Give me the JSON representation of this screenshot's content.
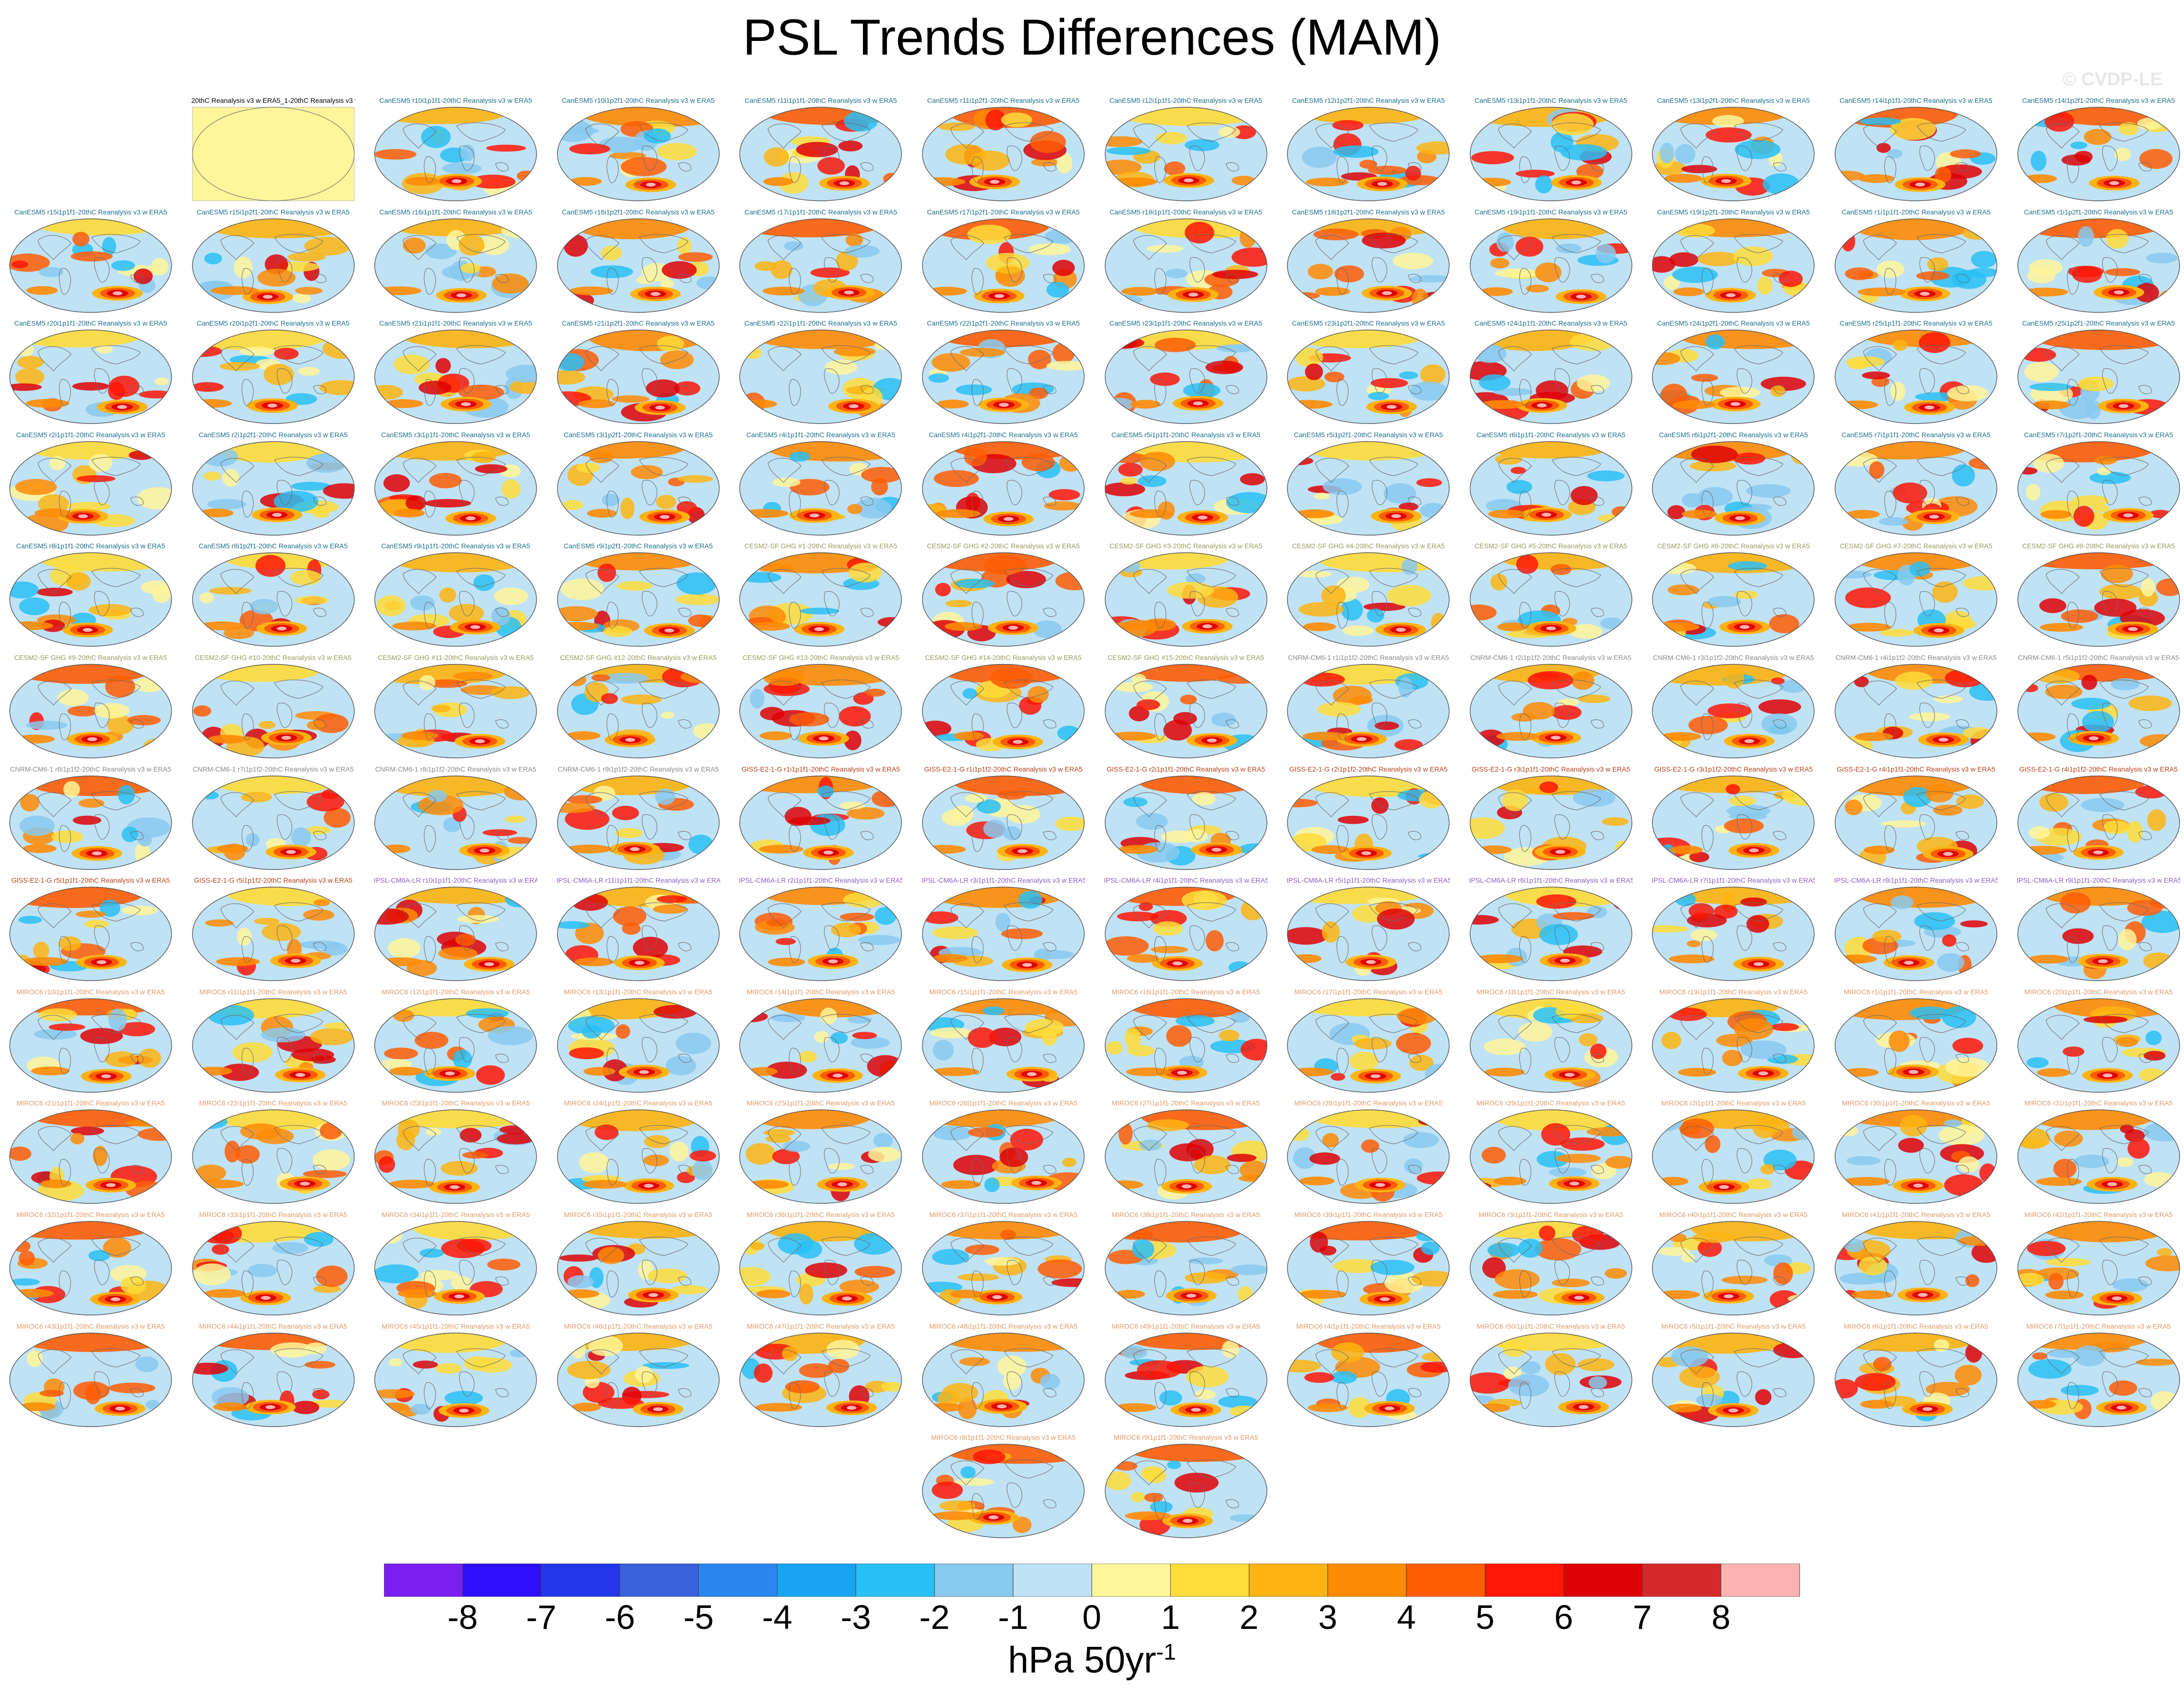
{
  "figure": {
    "title": "PSL Trends Differences (MAM)",
    "watermark": "© CVDP-LE"
  },
  "chart_data": {
    "type": "map-panels",
    "title": "PSL Trends Differences (MAM)",
    "variable": "PSL",
    "season": "MAM",
    "units": "hPa 50yr",
    "units_exponent": "-1",
    "colorbar": {
      "levels": [
        "-8",
        "-7",
        "-6",
        "-5",
        "-4",
        "-3",
        "-2",
        "-1",
        "0",
        "1",
        "2",
        "3",
        "4",
        "5",
        "6",
        "7",
        "8"
      ],
      "colors": [
        "#7b1ff0",
        "#2d10f7",
        "#2436ea",
        "#3a62dd",
        "#2a86f0",
        "#16a4f3",
        "#29c0f5",
        "#88c9ee",
        "#bfe2f5",
        "#fff59a",
        "#fedc3a",
        "#fdb412",
        "#fe8b05",
        "#fe5d05",
        "#fe1607",
        "#de0206",
        "#d52a2b",
        "#feb3b3"
      ]
    },
    "panels": [
      {
        "label": "20thC Reanalysis v3 w ERA5_1-20thC Reanalysis v3 w ERA5",
        "model": "OBS"
      },
      {
        "label": "CanESM5 r10i1p1f1-20thC Reanalysis v3 w ERA5",
        "model": "CanESM5"
      },
      {
        "label": "CanESM5 r10i1p2f1-20thC Reanalysis v3 w ERA5",
        "model": "CanESM5"
      },
      {
        "label": "CanESM5 r11i1p1f1-20thC Reanalysis v3 w ERA5",
        "model": "CanESM5"
      },
      {
        "label": "CanESM5 r11i1p2f1-20thC Reanalysis v3 w ERA5",
        "model": "CanESM5"
      },
      {
        "label": "CanESM5 r12i1p1f1-20thC Reanalysis v3 w ERA5",
        "model": "CanESM5"
      },
      {
        "label": "CanESM5 r12i1p2f1-20thC Reanalysis v3 w ERA5",
        "model": "CanESM5"
      },
      {
        "label": "CanESM5 r13i1p1f1-20thC Reanalysis v3 w ERA5",
        "model": "CanESM5"
      },
      {
        "label": "CanESM5 r13i1p2f1-20thC Reanalysis v3 w ERA5",
        "model": "CanESM5"
      },
      {
        "label": "CanESM5 r14i1p1f1-20thC Reanalysis v3 w ERA5",
        "model": "CanESM5"
      },
      {
        "label": "CanESM5 r14i1p2f1-20thC Reanalysis v3 w ERA5",
        "model": "CanESM5"
      },
      {
        "label": "CanESM5 r15i1p1f1-20thC Reanalysis v3 w ERA5",
        "model": "CanESM5"
      },
      {
        "label": "CanESM5 r15i1p2f1-20thC Reanalysis v3 w ERA5",
        "model": "CanESM5"
      },
      {
        "label": "CanESM5 r16i1p1f1-20thC Reanalysis v3 w ERA5",
        "model": "CanESM5"
      },
      {
        "label": "CanESM5 r16i1p2f1-20thC Reanalysis v3 w ERA5",
        "model": "CanESM5"
      },
      {
        "label": "CanESM5 r17i1p1f1-20thC Reanalysis v3 w ERA5",
        "model": "CanESM5"
      },
      {
        "label": "CanESM5 r17i1p2f1-20thC Reanalysis v3 w ERA5",
        "model": "CanESM5"
      },
      {
        "label": "CanESM5 r18i1p1f1-20thC Reanalysis v3 w ERA5",
        "model": "CanESM5"
      },
      {
        "label": "CanESM5 r18i1p2f1-20thC Reanalysis v3 w ERA5",
        "model": "CanESM5"
      },
      {
        "label": "CanESM5 r19i1p1f1-20thC Reanalysis v3 w ERA5",
        "model": "CanESM5"
      },
      {
        "label": "CanESM5 r19i1p2f1-20thC Reanalysis v3 w ERA5",
        "model": "CanESM5"
      },
      {
        "label": "CanESM5 r1i1p1f1-20thC Reanalysis v3 w ERA5",
        "model": "CanESM5"
      },
      {
        "label": "CanESM5 r1i1p2f1-20thC Reanalysis v3 w ERA5",
        "model": "CanESM5"
      },
      {
        "label": "CanESM5 r20i1p1f1-20thC Reanalysis v3 w ERA5",
        "model": "CanESM5"
      },
      {
        "label": "CanESM5 r20i1p2f1-20thC Reanalysis v3 w ERA5",
        "model": "CanESM5"
      },
      {
        "label": "CanESM5 r21i1p1f1-20thC Reanalysis v3 w ERA5",
        "model": "CanESM5"
      },
      {
        "label": "CanESM5 r21i1p2f1-20thC Reanalysis v3 w ERA5",
        "model": "CanESM5"
      },
      {
        "label": "CanESM5 r22i1p1f1-20thC Reanalysis v3 w ERA5",
        "model": "CanESM5"
      },
      {
        "label": "CanESM5 r22i1p2f1-20thC Reanalysis v3 w ERA5",
        "model": "CanESM5"
      },
      {
        "label": "CanESM5 r23i1p1f1-20thC Reanalysis v3 w ERA5",
        "model": "CanESM5"
      },
      {
        "label": "CanESM5 r23i1p2f1-20thC Reanalysis v3 w ERA5",
        "model": "CanESM5"
      },
      {
        "label": "CanESM5 r24i1p1f1-20thC Reanalysis v3 w ERA5",
        "model": "CanESM5"
      },
      {
        "label": "CanESM5 r24i1p2f1-20thC Reanalysis v3 w ERA5",
        "model": "CanESM5"
      },
      {
        "label": "CanESM5 r25i1p1f1-20thC Reanalysis v3 w ERA5",
        "model": "CanESM5"
      },
      {
        "label": "CanESM5 r25i1p2f1-20thC Reanalysis v3 w ERA5",
        "model": "CanESM5"
      },
      {
        "label": "CanESM5 r2i1p1f1-20thC Reanalysis v3 w ERA5",
        "model": "CanESM5"
      },
      {
        "label": "CanESM5 r2i1p2f1-20thC Reanalysis v3 w ERA5",
        "model": "CanESM5"
      },
      {
        "label": "CanESM5 r3i1p1f1-20thC Reanalysis v3 w ERA5",
        "model": "CanESM5"
      },
      {
        "label": "CanESM5 r3i1p2f1-20thC Reanalysis v3 w ERA5",
        "model": "CanESM5"
      },
      {
        "label": "CanESM5 r4i1p1f1-20thC Reanalysis v3 w ERA5",
        "model": "CanESM5"
      },
      {
        "label": "CanESM5 r4i1p2f1-20thC Reanalysis v3 w ERA5",
        "model": "CanESM5"
      },
      {
        "label": "CanESM5 r5i1p1f1-20thC Reanalysis v3 w ERA5",
        "model": "CanESM5"
      },
      {
        "label": "CanESM5 r5i1p2f1-20thC Reanalysis v3 w ERA5",
        "model": "CanESM5"
      },
      {
        "label": "CanESM5 r6i1p1f1-20thC Reanalysis v3 w ERA5",
        "model": "CanESM5"
      },
      {
        "label": "CanESM5 r6i1p2f1-20thC Reanalysis v3 w ERA5",
        "model": "CanESM5"
      },
      {
        "label": "CanESM5 r7i1p1f1-20thC Reanalysis v3 w ERA5",
        "model": "CanESM5"
      },
      {
        "label": "CanESM5 r7i1p2f1-20thC Reanalysis v3 w ERA5",
        "model": "CanESM5"
      },
      {
        "label": "CanESM5 r8i1p1f1-20thC Reanalysis v3 w ERA5",
        "model": "CanESM5"
      },
      {
        "label": "CanESM5 r8i1p2f1-20thC Reanalysis v3 w ERA5",
        "model": "CanESM5"
      },
      {
        "label": "CanESM5 r9i1p1f1-20thC Reanalysis v3 w ERA5",
        "model": "CanESM5"
      },
      {
        "label": "CanESM5 r9i1p2f1-20thC Reanalysis v3 w ERA5",
        "model": "CanESM5"
      },
      {
        "label": "CESM2-SF GHG #1-20thC Reanalysis v3 w ERA5",
        "model": "CESM2-SF"
      },
      {
        "label": "CESM2-SF GHG #2-20thC Reanalysis v3 w ERA5",
        "model": "CESM2-SF"
      },
      {
        "label": "CESM2-SF GHG #3-20thC Reanalysis v3 w ERA5",
        "model": "CESM2-SF"
      },
      {
        "label": "CESM2-SF GHG #4-20thC Reanalysis v3 w ERA5",
        "model": "CESM2-SF"
      },
      {
        "label": "CESM2-SF GHG #5-20thC Reanalysis v3 w ERA5",
        "model": "CESM2-SF"
      },
      {
        "label": "CESM2-SF GHG #6-20thC Reanalysis v3 w ERA5",
        "model": "CESM2-SF"
      },
      {
        "label": "CESM2-SF GHG #7-20thC Reanalysis v3 w ERA5",
        "model": "CESM2-SF"
      },
      {
        "label": "CESM2-SF GHG #8-20thC Reanalysis v3 w ERA5",
        "model": "CESM2-SF"
      },
      {
        "label": "CESM2-SF GHG #9-20thC Reanalysis v3 w ERA5",
        "model": "CESM2-SF"
      },
      {
        "label": "CESM2-SF GHG #10-20thC Reanalysis v3 w ERA5",
        "model": "CESM2-SF"
      },
      {
        "label": "CESM2-SF GHG #11-20thC Reanalysis v3 w ERA5",
        "model": "CESM2-SF"
      },
      {
        "label": "CESM2-SF GHG #12-20thC Reanalysis v3 w ERA5",
        "model": "CESM2-SF"
      },
      {
        "label": "CESM2-SF GHG #13-20thC Reanalysis v3 w ERA5",
        "model": "CESM2-SF"
      },
      {
        "label": "CESM2-SF GHG #14-20thC Reanalysis v3 w ERA5",
        "model": "CESM2-SF"
      },
      {
        "label": "CESM2-SF GHG #15-20thC Reanalysis v3 w ERA5",
        "model": "CESM2-SF"
      },
      {
        "label": "CNRM-CM6-1 r1i1p1f2-20thC Reanalysis v3 w ERA5",
        "model": "CNRM"
      },
      {
        "label": "CNRM-CM6-1 r2i1p1f2-20thC Reanalysis v3 w ERA5",
        "model": "CNRM"
      },
      {
        "label": "CNRM-CM6-1 r3i1p1f2-20thC Reanalysis v3 w ERA5",
        "model": "CNRM"
      },
      {
        "label": "CNRM-CM6-1 r4i1p1f2-20thC Reanalysis v3 w ERA5",
        "model": "CNRM"
      },
      {
        "label": "CNRM-CM6-1 r5i1p1f2-20thC Reanalysis v3 w ERA5",
        "model": "CNRM"
      },
      {
        "label": "CNRM-CM6-1 r6i1p1f2-20thC Reanalysis v3 w ERA5",
        "model": "CNRM"
      },
      {
        "label": "CNRM-CM6-1 r7i1p1f2-20thC Reanalysis v3 w ERA5",
        "model": "CNRM"
      },
      {
        "label": "CNRM-CM6-1 r8i1p1f2-20thC Reanalysis v3 w ERA5",
        "model": "CNRM"
      },
      {
        "label": "CNRM-CM6-1 r9i1p1f2-20thC Reanalysis v3 w ERA5",
        "model": "CNRM"
      },
      {
        "label": "GISS-E2-1-G r1i1p1f1-20thC Reanalysis v3 w ERA5",
        "model": "GISS"
      },
      {
        "label": "GISS-E2-1-G r1i1p1f2-20thC Reanalysis v3 w ERA5",
        "model": "GISS"
      },
      {
        "label": "GISS-E2-1-G r2i1p1f1-20thC Reanalysis v3 w ERA5",
        "model": "GISS"
      },
      {
        "label": "GISS-E2-1-G r2i1p1f2-20thC Reanalysis v3 w ERA5",
        "model": "GISS"
      },
      {
        "label": "GISS-E2-1-G r3i1p1f1-20thC Reanalysis v3 w ERA5",
        "model": "GISS"
      },
      {
        "label": "GISS-E2-1-G r3i1p1f2-20thC Reanalysis v3 w ERA5",
        "model": "GISS"
      },
      {
        "label": "GISS-E2-1-G r4i1p1f1-20thC Reanalysis v3 w ERA5",
        "model": "GISS"
      },
      {
        "label": "GISS-E2-1-G r4i1p1f2-20thC Reanalysis v3 w ERA5",
        "model": "GISS"
      },
      {
        "label": "GISS-E2-1-G r5i1p1f1-20thC Reanalysis v3 w ERA5",
        "model": "GISS"
      },
      {
        "label": "GISS-E2-1-G r5i1p1f2-20thC Reanalysis v3 w ERA5",
        "model": "GISS"
      },
      {
        "label": "IPSL-CM6A-LR r10i1p1f1-20thC Reanalysis v3 w ERA5",
        "model": "IPSL"
      },
      {
        "label": "IPSL-CM6A-LR r11i1p1f1-20thC Reanalysis v3 w ERA5",
        "model": "IPSL"
      },
      {
        "label": "IPSL-CM6A-LR r2i1p1f1-20thC Reanalysis v3 w ERA5",
        "model": "IPSL"
      },
      {
        "label": "IPSL-CM6A-LR r3i1p1f1-20thC Reanalysis v3 w ERA5",
        "model": "IPSL"
      },
      {
        "label": "IPSL-CM6A-LR r4i1p1f1-20thC Reanalysis v3 w ERA5",
        "model": "IPSL"
      },
      {
        "label": "IPSL-CM6A-LR r5i1p1f1-20thC Reanalysis v3 w ERA5",
        "model": "IPSL"
      },
      {
        "label": "IPSL-CM6A-LR r6i1p1f1-20thC Reanalysis v3 w ERA5",
        "model": "IPSL"
      },
      {
        "label": "IPSL-CM6A-LR r7i1p1f1-20thC Reanalysis v3 w ERA5",
        "model": "IPSL"
      },
      {
        "label": "IPSL-CM6A-LR r8i1p1f1-20thC Reanalysis v3 w ERA5",
        "model": "IPSL"
      },
      {
        "label": "IPSL-CM6A-LR r9i1p1f1-20thC Reanalysis v3 w ERA5",
        "model": "IPSL"
      },
      {
        "label": "MIROC6 r10i1p1f1-20thC Reanalysis v3 w ERA5",
        "model": "MIROC6"
      },
      {
        "label": "MIROC6 r11i1p1f1-20thC Reanalysis v3 w ERA5",
        "model": "MIROC6"
      },
      {
        "label": "MIROC6 r12i1p1f1-20thC Reanalysis v3 w ERA5",
        "model": "MIROC6"
      },
      {
        "label": "MIROC6 r13i1p1f1-20thC Reanalysis v3 w ERA5",
        "model": "MIROC6"
      },
      {
        "label": "MIROC6 r14i1p1f1-20thC Reanalysis v3 w ERA5",
        "model": "MIROC6"
      },
      {
        "label": "MIROC6 r15i1p1f1-20thC Reanalysis v3 w ERA5",
        "model": "MIROC6"
      },
      {
        "label": "MIROC6 r16i1p1f1-20thC Reanalysis v3 w ERA5",
        "model": "MIROC6"
      },
      {
        "label": "MIROC6 r17i1p1f1-20thC Reanalysis v3 w ERA5",
        "model": "MIROC6"
      },
      {
        "label": "MIROC6 r18i1p1f1-20thC Reanalysis v3 w ERA5",
        "model": "MIROC6"
      },
      {
        "label": "MIROC6 r19i1p1f1-20thC Reanalysis v3 w ERA5",
        "model": "MIROC6"
      },
      {
        "label": "MIROC6 r1i1p1f1-20thC Reanalysis v3 w ERA5",
        "model": "MIROC6"
      },
      {
        "label": "MIROC6 r20i1p1f1-20thC Reanalysis v3 w ERA5",
        "model": "MIROC6"
      },
      {
        "label": "MIROC6 r21i1p1f1-20thC Reanalysis v3 w ERA5",
        "model": "MIROC6"
      },
      {
        "label": "MIROC6 r22i1p1f1-20thC Reanalysis v3 w ERA5",
        "model": "MIROC6"
      },
      {
        "label": "MIROC6 r23i1p1f1-20thC Reanalysis v3 w ERA5",
        "model": "MIROC6"
      },
      {
        "label": "MIROC6 r24i1p1f1-20thC Reanalysis v3 w ERA5",
        "model": "MIROC6"
      },
      {
        "label": "MIROC6 r25i1p1f1-20thC Reanalysis v3 w ERA5",
        "model": "MIROC6"
      },
      {
        "label": "MIROC6 r26i1p1f1-20thC Reanalysis v3 w ERA5",
        "model": "MIROC6"
      },
      {
        "label": "MIROC6 r27i1p1f1-20thC Reanalysis v3 w ERA5",
        "model": "MIROC6"
      },
      {
        "label": "MIROC6 r28i1p1f1-20thC Reanalysis v3 w ERA5",
        "model": "MIROC6"
      },
      {
        "label": "MIROC6 r29i1p1f1-20thC Reanalysis v3 w ERA5",
        "model": "MIROC6"
      },
      {
        "label": "MIROC6 r2i1p1f1-20thC Reanalysis v3 w ERA5",
        "model": "MIROC6"
      },
      {
        "label": "MIROC6 r30i1p1f1-20thC Reanalysis v3 w ERA5",
        "model": "MIROC6"
      },
      {
        "label": "MIROC6 r31i1p1f1-20thC Reanalysis v3 w ERA5",
        "model": "MIROC6"
      },
      {
        "label": "MIROC6 r32i1p1f1-20thC Reanalysis v3 w ERA5",
        "model": "MIROC6"
      },
      {
        "label": "MIROC6 r33i1p1f1-20thC Reanalysis v3 w ERA5",
        "model": "MIROC6"
      },
      {
        "label": "MIROC6 r34i1p1f1-20thC Reanalysis v3 w ERA5",
        "model": "MIROC6"
      },
      {
        "label": "MIROC6 r35i1p1f1-20thC Reanalysis v3 w ERA5",
        "model": "MIROC6"
      },
      {
        "label": "MIROC6 r36i1p1f1-20thC Reanalysis v3 w ERA5",
        "model": "MIROC6"
      },
      {
        "label": "MIROC6 r37i1p1f1-20thC Reanalysis v3 w ERA5",
        "model": "MIROC6"
      },
      {
        "label": "MIROC6 r38i1p1f1-20thC Reanalysis v3 w ERA5",
        "model": "MIROC6"
      },
      {
        "label": "MIROC6 r39i1p1f1-20thC Reanalysis v3 w ERA5",
        "model": "MIROC6"
      },
      {
        "label": "MIROC6 r3i1p1f1-20thC Reanalysis v3 w ERA5",
        "model": "MIROC6"
      },
      {
        "label": "MIROC6 r40i1p1f1-20thC Reanalysis v3 w ERA5",
        "model": "MIROC6"
      },
      {
        "label": "MIROC6 r41i1p1f1-20thC Reanalysis v3 w ERA5",
        "model": "MIROC6"
      },
      {
        "label": "MIROC6 r42i1p1f1-20thC Reanalysis v3 w ERA5",
        "model": "MIROC6"
      },
      {
        "label": "MIROC6 r43i1p1f1-20thC Reanalysis v3 w ERA5",
        "model": "MIROC6"
      },
      {
        "label": "MIROC6 r44i1p1f1-20thC Reanalysis v3 w ERA5",
        "model": "MIROC6"
      },
      {
        "label": "MIROC6 r45i1p1f1-20thC Reanalysis v3 w ERA5",
        "model": "MIROC6"
      },
      {
        "label": "MIROC6 r46i1p1f1-20thC Reanalysis v3 w ERA5",
        "model": "MIROC6"
      },
      {
        "label": "MIROC6 r47i1p1f1-20thC Reanalysis v3 w ERA5",
        "model": "MIROC6"
      },
      {
        "label": "MIROC6 r48i1p1f1-20thC Reanalysis v3 w ERA5",
        "model": "MIROC6"
      },
      {
        "label": "MIROC6 r49i1p1f1-20thC Reanalysis v3 w ERA5",
        "model": "MIROC6"
      },
      {
        "label": "MIROC6 r4i1p1f1-20thC Reanalysis v3 w ERA5",
        "model": "MIROC6"
      },
      {
        "label": "MIROC6 r50i1p1f1-20thC Reanalysis v3 w ERA5",
        "model": "MIROC6"
      },
      {
        "label": "MIROC6 r5i1p1f1-20thC Reanalysis v3 w ERA5",
        "model": "MIROC6"
      },
      {
        "label": "MIROC6 r6i1p1f1-20thC Reanalysis v3 w ERA5",
        "model": "MIROC6"
      },
      {
        "label": "MIROC6 r7i1p1f1-20thC Reanalysis v3 w ERA5",
        "model": "MIROC6"
      },
      {
        "label": "MIROC6 r8i1p1f1-20thC Reanalysis v3 w ERA5",
        "model": "MIROC6"
      },
      {
        "label": "MIROC6 r9i1p1f1-20thC Reanalysis v3 w ERA5",
        "model": "MIROC6"
      }
    ]
  },
  "model_colors": {
    "OBS": "#000000",
    "CanESM5": "#1a6f8f",
    "CESM2-SF": "#9a9a5e",
    "CNRM": "#8a8a8a",
    "GISS": "#b2421a",
    "IPSL": "#8a5fc2",
    "MIROC6": "#e09a68"
  }
}
